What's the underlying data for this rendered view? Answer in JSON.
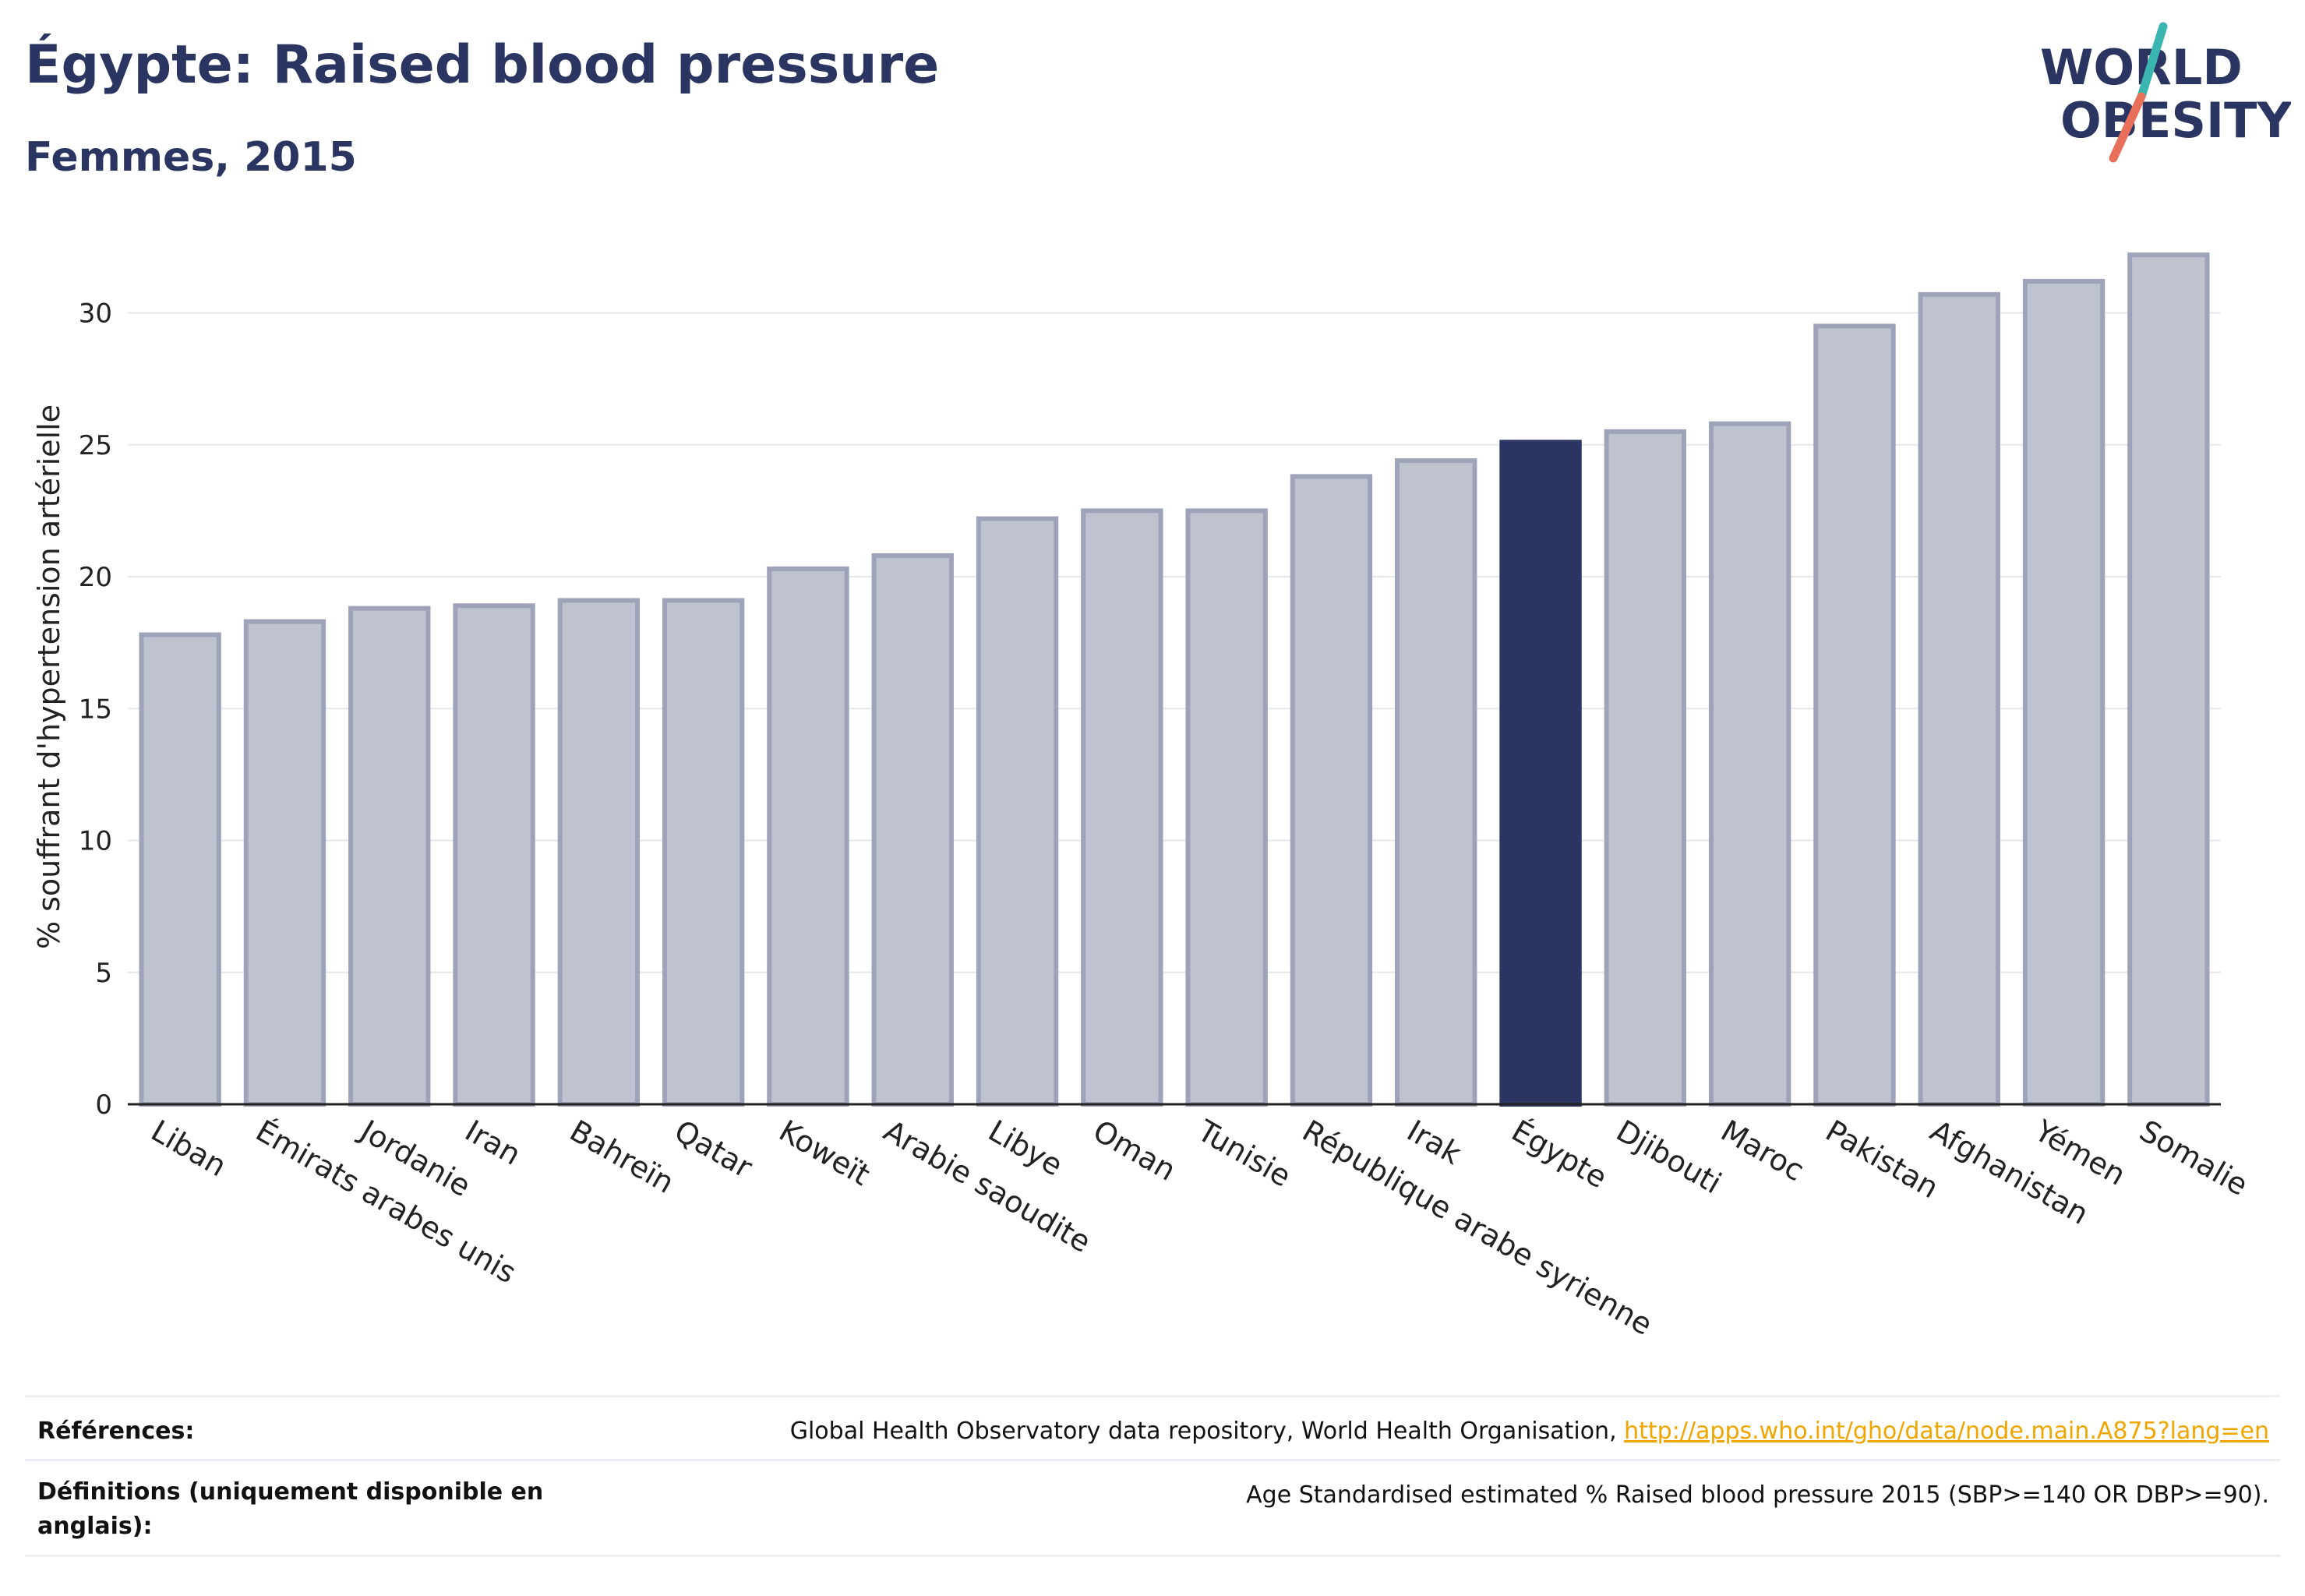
{
  "header": {
    "title": "Égypte: Raised blood pressure",
    "subtitle": "Femmes, 2015"
  },
  "logo": {
    "line1": "WORLD",
    "line2": "OBESITY"
  },
  "colors": {
    "highlight": "#2a3562",
    "bar_fill": "#bfc3d0",
    "bar_stroke": "#9ea3ba",
    "grid": "#e6e7ec",
    "logo_teal": "#3ab5b0",
    "logo_coral": "#e8705a",
    "link": "#f0a500"
  },
  "chart_data": {
    "type": "bar",
    "ylabel": "% souffrant d'hypertension artérielle",
    "ylim": [
      0,
      33
    ],
    "yticks": [
      0,
      5,
      10,
      15,
      20,
      25,
      30
    ],
    "grid": true,
    "highlight_category": "Égypte",
    "categories": [
      "Liban",
      "Émirats arabes unis",
      "Jordanie",
      "Iran",
      "Bahreïn",
      "Qatar",
      "Koweït",
      "Arabie saoudite",
      "Libye",
      "Oman",
      "Tunisie",
      "République arabe syrienne",
      "Irak",
      "Égypte",
      "Djibouti",
      "Maroc",
      "Pakistan",
      "Afghanistan",
      "Yémen",
      "Somalie"
    ],
    "values": [
      17.8,
      18.3,
      18.8,
      18.9,
      19.1,
      19.1,
      20.3,
      20.8,
      22.2,
      22.5,
      22.5,
      23.8,
      24.4,
      25.1,
      25.5,
      25.8,
      29.5,
      30.7,
      31.2,
      32.2
    ]
  },
  "footer": {
    "references_label": "Références:",
    "references_text": "Global Health Observatory data repository, World Health Organisation, ",
    "references_link": "http://apps.who.int/gho/data/node.main.A875?lang=en",
    "definitions_label": "Définitions (uniquement disponible en anglais):",
    "definitions_text": "Age Standardised estimated % Raised blood pressure 2015 (SBP>=140 OR DBP>=90)."
  }
}
